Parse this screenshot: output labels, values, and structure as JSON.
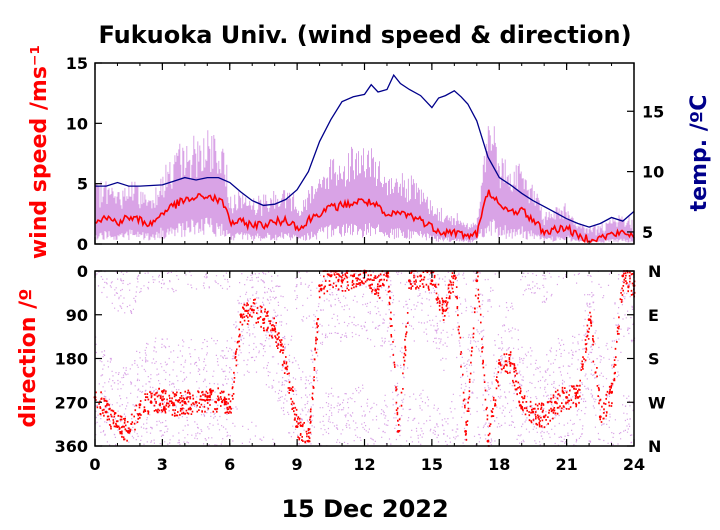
{
  "chart_data": [
    {
      "type": "line",
      "title": "Fukuoka Univ. (wind speed & direction)",
      "ylabel": "wind speed /ms⁻¹",
      "y2label": "temp. /ºC",
      "xlim": [
        0,
        24
      ],
      "ylim": [
        0,
        15
      ],
      "y2lim": [
        4,
        19
      ],
      "xticks": [
        0,
        3,
        6,
        9,
        12,
        15,
        18,
        21,
        24
      ],
      "yticks": [
        0,
        5,
        10,
        15
      ],
      "y2ticks": [
        5,
        10,
        15
      ],
      "colors": {
        "wind_mean": "#ff0000",
        "wind_raw": "#d9a3e6",
        "temperature": "#00008b",
        "ylabel": "#ff0000",
        "y2label": "#00008b"
      },
      "series": [
        {
          "key": "wind_mean",
          "x": [
            0,
            0.5,
            1,
            1.5,
            2,
            2.5,
            3,
            3.5,
            4,
            4.5,
            5,
            5.5,
            5.8,
            6,
            6.5,
            7,
            7.5,
            8,
            8.5,
            9,
            9.3,
            9.5,
            10,
            10.5,
            11,
            11.5,
            12,
            12.5,
            13,
            13.5,
            14,
            14.5,
            15,
            15.5,
            16,
            16.5,
            17,
            17.3,
            17.5,
            17.8,
            18,
            18.5,
            19,
            19.5,
            20,
            20.5,
            21,
            21.5,
            22,
            22.5,
            23,
            23.5,
            24
          ],
          "y": [
            2,
            2.2,
            1.8,
            2.2,
            2,
            1.6,
            2.6,
            3.2,
            3.6,
            3.8,
            4,
            3.6,
            3.2,
            1.8,
            1.8,
            1.6,
            1.6,
            1.8,
            2,
            1.5,
            1.4,
            2,
            2.6,
            3,
            3.2,
            3.4,
            3.6,
            3.2,
            2.2,
            2.6,
            2.4,
            2,
            1.4,
            1,
            1,
            0.7,
            0.8,
            3,
            4.3,
            4,
            3,
            2.7,
            2.8,
            2,
            1,
            1.2,
            1.4,
            0.6,
            0.5,
            0.5,
            0.8,
            0.9,
            0.7
          ]
        },
        {
          "key": "temperature",
          "x": [
            0,
            0.5,
            1,
            1.5,
            2,
            3,
            3.5,
            4,
            4.5,
            5,
            5.5,
            6,
            6.5,
            7,
            7.5,
            8,
            8.5,
            9,
            9.5,
            10,
            10.5,
            11,
            11.5,
            12,
            12.3,
            12.6,
            13,
            13.3,
            13.6,
            14,
            14.5,
            15,
            15.3,
            15.6,
            16,
            16.3,
            16.6,
            17,
            17.5,
            18,
            18.5,
            19,
            19.5,
            20,
            20.5,
            21,
            21.5,
            22,
            22.5,
            23,
            23.5,
            24
          ],
          "y": [
            8.8,
            8.8,
            9.1,
            8.8,
            8.8,
            8.9,
            9.2,
            9.5,
            9.3,
            9.5,
            9.5,
            9.1,
            8.3,
            7.6,
            7.2,
            7.3,
            7.7,
            8.5,
            10,
            12.5,
            14.3,
            15.8,
            16.2,
            16.4,
            17.2,
            16.6,
            16.8,
            18,
            17.3,
            16.8,
            16.3,
            15.3,
            16.1,
            16.3,
            16.7,
            16.2,
            15.6,
            14.2,
            11.2,
            9.5,
            8.9,
            8.2,
            7.6,
            7.1,
            6.6,
            6.1,
            5.7,
            5.4,
            5.7,
            6.2,
            5.9,
            6.7
          ]
        }
      ]
    },
    {
      "type": "scatter",
      "ylabel": "direction /º",
      "xlabel": "15 Dec 2022",
      "xlim": [
        0,
        24
      ],
      "ylim": [
        360,
        0
      ],
      "xticks": [
        0,
        3,
        6,
        9,
        12,
        15,
        18,
        21,
        24
      ],
      "yticks": [
        0,
        90,
        180,
        270,
        360
      ],
      "y2ticks": [
        "N",
        "E",
        "S",
        "W",
        "N"
      ],
      "colors": {
        "direction_mean": "#ff0000",
        "direction_raw": "#d9a3e6",
        "ylabel": "#ff0000"
      },
      "series": [
        {
          "key": "direction_mean",
          "x": [
            0,
            0.5,
            1,
            1.5,
            2,
            2.5,
            3,
            3.5,
            4,
            4.5,
            5,
            5.5,
            5.8,
            6,
            6.5,
            7,
            7.5,
            8,
            8.5,
            9,
            9.5,
            10,
            10.5,
            11,
            11.5,
            12,
            12.5,
            13,
            13.5,
            14,
            14.5,
            15,
            15.5,
            16,
            16.5,
            17,
            17.5,
            18,
            18.5,
            19,
            19.5,
            20,
            20.5,
            21,
            21.5,
            22,
            22.5,
            23,
            23.5,
            24
          ],
          "y": [
            260,
            290,
            320,
            330,
            275,
            270,
            265,
            275,
            270,
            270,
            265,
            265,
            270,
            280,
            90,
            80,
            100,
            120,
            200,
            320,
            350,
            30,
            10,
            20,
            10,
            0,
            40,
            10,
            330,
            20,
            10,
            20,
            80,
            10,
            330,
            20,
            350,
            190,
            190,
            280,
            290,
            300,
            270,
            260,
            260,
            100,
            300,
            250,
            10,
            30
          ]
        }
      ]
    }
  ]
}
